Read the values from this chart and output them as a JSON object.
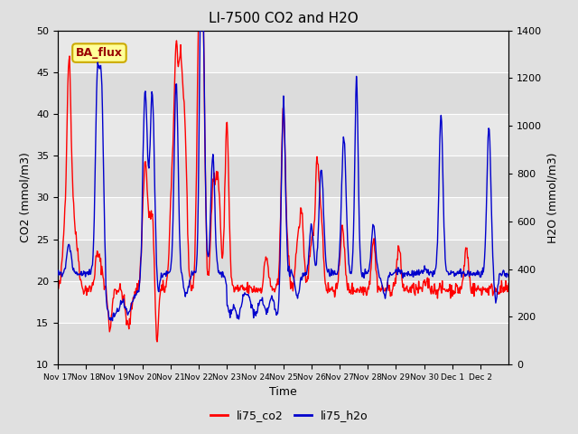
{
  "title": "LI-7500 CO2 and H2O",
  "xlabel": "Time",
  "ylabel_left": "CO2 (mmol/m3)",
  "ylabel_right": "H2O (mmol/m3)",
  "ylim_left": [
    10,
    50
  ],
  "ylim_right": [
    0,
    1400
  ],
  "yticks_left": [
    10,
    15,
    20,
    25,
    30,
    35,
    40,
    45,
    50
  ],
  "yticks_right": [
    0,
    200,
    400,
    600,
    800,
    1000,
    1200,
    1400
  ],
  "xtick_labels": [
    "Nov 17",
    "Nov 18",
    "Nov 19",
    "Nov 20",
    "Nov 21",
    "Nov 22",
    "Nov 23",
    "Nov 24",
    "Nov 25",
    "Nov 26",
    "Nov 27",
    "Nov 28",
    "Nov 29",
    "Nov 30",
    "Dec 1",
    "Dec 2"
  ],
  "legend_labels": [
    "li75_co2",
    "li75_h2o"
  ],
  "co2_color": "#ff0000",
  "h2o_color": "#0000cc",
  "band_colors": [
    "#dcdcdc",
    "#e8e8e8"
  ],
  "annotation_text": "BA_flux",
  "annotation_bg": "#ffff99",
  "annotation_border": "#ccaa00",
  "annotation_fg": "#990000",
  "title_fontsize": 11,
  "axis_fontsize": 9,
  "tick_fontsize": 8,
  "legend_fontsize": 9,
  "line_width": 1.0,
  "seed": 42,
  "n_days": 16,
  "n_points": 768
}
